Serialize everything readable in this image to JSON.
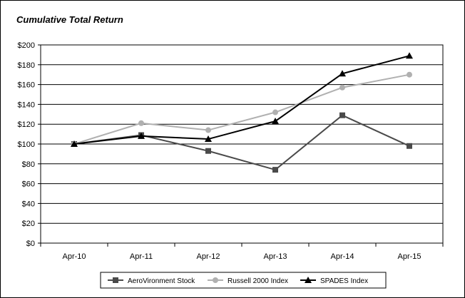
{
  "chart_data": {
    "type": "line",
    "title": "Cumulative Total Return",
    "xlabel": "",
    "ylabel": "",
    "categories": [
      "Apr-10",
      "Apr-11",
      "Apr-12",
      "Apr-13",
      "Apr-14",
      "Apr-15"
    ],
    "y_ticks": [
      "$0",
      "$20",
      "$40",
      "$60",
      "$80",
      "$100",
      "$120",
      "$140",
      "$160",
      "$180",
      "$200"
    ],
    "ylim": [
      0,
      200
    ],
    "grid": "horizontal",
    "legend_position": "bottom",
    "series": [
      {
        "name": "AeroVironment Stock",
        "color": "#4a4a4a",
        "marker": "square",
        "values": [
          100,
          109,
          93,
          74,
          129,
          98
        ]
      },
      {
        "name": "Russell 2000 Index",
        "color": "#b0b0b0",
        "marker": "circle",
        "values": [
          100,
          121,
          114,
          132,
          157,
          170
        ]
      },
      {
        "name": "SPADES Index",
        "color": "#000000",
        "marker": "triangle",
        "values": [
          100,
          108,
          105,
          123,
          171,
          189
        ]
      }
    ]
  }
}
